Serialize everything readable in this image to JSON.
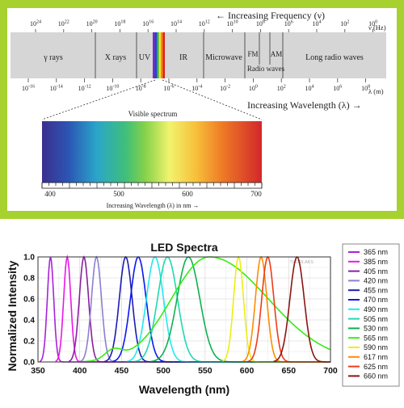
{
  "spectrum": {
    "freq_title": "← Increasing Frequency (ν)",
    "freq_unit": "ν (Hz)",
    "wave_unit": "λ (m)",
    "wave_title": "Increasing Wavelength (λ) →",
    "freq_ticks": [
      {
        "base": "10",
        "exp": "24"
      },
      {
        "base": "10",
        "exp": "22"
      },
      {
        "base": "10",
        "exp": "20"
      },
      {
        "base": "10",
        "exp": "18"
      },
      {
        "base": "10",
        "exp": "16"
      },
      {
        "base": "10",
        "exp": "14"
      },
      {
        "base": "10",
        "exp": "12"
      },
      {
        "base": "10",
        "exp": "10"
      },
      {
        "base": "10",
        "exp": "8"
      },
      {
        "base": "10",
        "exp": "6"
      },
      {
        "base": "10",
        "exp": "4"
      },
      {
        "base": "10",
        "exp": "2"
      },
      {
        "base": "10",
        "exp": "0"
      }
    ],
    "wave_ticks": [
      {
        "base": "10",
        "exp": "-16"
      },
      {
        "base": "10",
        "exp": "-14"
      },
      {
        "base": "10",
        "exp": "-12"
      },
      {
        "base": "10",
        "exp": "-10"
      },
      {
        "base": "10",
        "exp": "-8"
      },
      {
        "base": "10",
        "exp": "-6"
      },
      {
        "base": "10",
        "exp": "-4"
      },
      {
        "base": "10",
        "exp": "-2"
      },
      {
        "base": "10",
        "exp": "0"
      },
      {
        "base": "10",
        "exp": "2"
      },
      {
        "base": "10",
        "exp": "4"
      },
      {
        "base": "10",
        "exp": "6"
      },
      {
        "base": "10",
        "exp": "8"
      }
    ],
    "regions": [
      "γ rays",
      "X rays",
      "UV",
      "IR",
      "Microwave",
      "FM",
      "Radio waves",
      "AM",
      "Long radio waves"
    ],
    "visible_title": "Visible spectrum",
    "visible_ticks": [
      "400",
      "500",
      "600",
      "700"
    ],
    "visible_xlabel": "Increasing Wavelength (λ) in nm →",
    "colors": {
      "border": "#a6d12f",
      "band": "#d6d6d6"
    }
  },
  "led": {
    "chart_data": {
      "type": "line",
      "title": "LED Spectra",
      "xlabel": "Wavelength (nm)",
      "ylabel": "Normalized Intensity",
      "xlim": [
        350,
        700
      ],
      "ylim": [
        0,
        1.0
      ],
      "x_ticks": [
        "350",
        "400",
        "450",
        "500",
        "550",
        "600",
        "650",
        "700"
      ],
      "y_ticks": [
        "0.0",
        "0.2",
        "0.4",
        "0.6",
        "0.8",
        "1.0"
      ],
      "grid": true,
      "legend_position": "right",
      "watermark": "THORLABS",
      "series": [
        {
          "name": "365 nm",
          "peak": 365,
          "fwhm": 9,
          "color": "#a822d8"
        },
        {
          "name": "385 nm",
          "peak": 385,
          "fwhm": 10,
          "color": "#e817e8"
        },
        {
          "name": "405 nm",
          "peak": 405,
          "fwhm": 13,
          "color": "#8a1ea0"
        },
        {
          "name": "420 nm",
          "peak": 420,
          "fwhm": 14,
          "color": "#8d7fd0"
        },
        {
          "name": "455 nm",
          "peak": 455,
          "fwhm": 18,
          "color": "#1c1bb0"
        },
        {
          "name": "470 nm",
          "peak": 470,
          "fwhm": 22,
          "color": "#0918f0"
        },
        {
          "name": "490 nm",
          "peak": 490,
          "fwhm": 24,
          "color": "#22e9ee"
        },
        {
          "name": "505 nm",
          "peak": 505,
          "fwhm": 28,
          "color": "#20d8b0"
        },
        {
          "name": "530 nm",
          "peak": 530,
          "fwhm": 32,
          "color": "#0fb050"
        },
        {
          "name": "565 nm",
          "peak": 565,
          "fwhm": 100,
          "color": "#33ee11"
        },
        {
          "name": "590 nm",
          "peak": 590,
          "fwhm": 14,
          "color": "#eeee11"
        },
        {
          "name": "617 nm",
          "peak": 617,
          "fwhm": 16,
          "color": "#ff8c00"
        },
        {
          "name": "625 nm",
          "peak": 625,
          "fwhm": 17,
          "color": "#ef3b18"
        },
        {
          "name": "660 nm",
          "peak": 660,
          "fwhm": 20,
          "color": "#8a1510"
        }
      ]
    }
  }
}
